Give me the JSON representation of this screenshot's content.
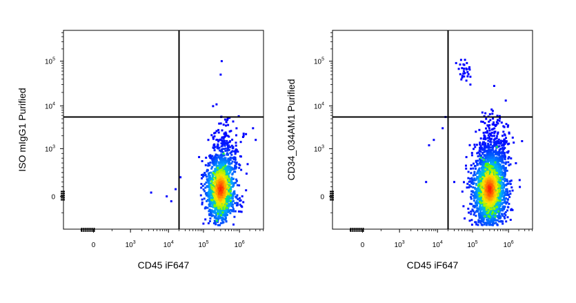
{
  "chart_data": [
    {
      "type": "scatter",
      "title": "",
      "xlabel": "CD45 iF647",
      "ylabel": "ISO mIgG1 Purified",
      "x_scale": "biexponential",
      "y_scale": "biexponential",
      "x_ticks": [
        {
          "value": 0,
          "base": "0",
          "exp": ""
        },
        {
          "value": 1000,
          "base": "10",
          "exp": "3"
        },
        {
          "value": 10000,
          "base": "10",
          "exp": "4"
        },
        {
          "value": 100000,
          "base": "10",
          "exp": "5"
        },
        {
          "value": 1000000,
          "base": "10",
          "exp": "6"
        }
      ],
      "y_ticks": [
        {
          "value": 0,
          "base": "0",
          "exp": ""
        },
        {
          "value": 1000,
          "base": "10",
          "exp": "3"
        },
        {
          "value": 10000,
          "base": "10",
          "exp": "4"
        },
        {
          "value": 100000,
          "base": "10",
          "exp": "5"
        }
      ],
      "gate_x": 20000,
      "gate_y": 5500,
      "grid": false,
      "legend": "none",
      "colormap": "density: blue-cyan-green-yellow-red",
      "populations": [
        {
          "x_center": 300000,
          "y_center": 150,
          "spread": "tight main cluster",
          "colors": [
            "#0000ff",
            "#00c8ff",
            "#00ff40",
            "#ffff00",
            "#ff0000"
          ]
        }
      ],
      "outliers": [
        {
          "x": 320000,
          "y": 100000
        },
        {
          "x": 300000,
          "y": 50000
        },
        {
          "x": 310000,
          "y": 5500
        },
        {
          "x": 400000,
          "y": 4800
        },
        {
          "x": 2500000,
          "y": 3000
        },
        {
          "x": 3000000,
          "y": 1600
        },
        {
          "x": 3500,
          "y": 80
        },
        {
          "x": 16000,
          "y": 150
        },
        {
          "x": 22000,
          "y": 400
        },
        {
          "x": 12000,
          "y": -150
        },
        {
          "x": 9000,
          "y": 0
        }
      ]
    },
    {
      "type": "scatter",
      "title": "",
      "xlabel": "CD45 iF647",
      "ylabel": "CD34_034AM1 Purified",
      "x_scale": "biexponential",
      "y_scale": "biexponential",
      "x_ticks": [
        {
          "value": 0,
          "base": "0",
          "exp": ""
        },
        {
          "value": 1000,
          "base": "10",
          "exp": "3"
        },
        {
          "value": 10000,
          "base": "10",
          "exp": "4"
        },
        {
          "value": 100000,
          "base": "10",
          "exp": "5"
        },
        {
          "value": 1000000,
          "base": "10",
          "exp": "6"
        }
      ],
      "y_ticks": [
        {
          "value": 0,
          "base": "0",
          "exp": ""
        },
        {
          "value": 1000,
          "base": "10",
          "exp": "3"
        },
        {
          "value": 10000,
          "base": "10",
          "exp": "4"
        },
        {
          "value": 100000,
          "base": "10",
          "exp": "5"
        }
      ],
      "gate_x": 20000,
      "gate_y": 5500,
      "grid": false,
      "legend": "none",
      "colormap": "density: blue-cyan-green-yellow-red",
      "populations": [
        {
          "x_center": 300000,
          "y_center": 150,
          "spread": "broad main cluster",
          "colors": [
            "#0000ff",
            "#00c8ff",
            "#00ff40",
            "#ffff00",
            "#ff0000"
          ]
        },
        {
          "x_center": 60000,
          "y_center": 60000,
          "spread": "small CD34+ cluster"
        }
      ],
      "outliers": [
        {
          "x": 400000,
          "y": 28000
        },
        {
          "x": 2500000,
          "y": 1500
        },
        {
          "x": 5000,
          "y": 300
        },
        {
          "x": 30000,
          "y": 300
        },
        {
          "x": 14000,
          "y": 3000
        },
        {
          "x": 8000,
          "y": 1600
        },
        {
          "x": 6000,
          "y": 1200
        },
        {
          "x": 17000,
          "y": 5500
        }
      ]
    }
  ]
}
